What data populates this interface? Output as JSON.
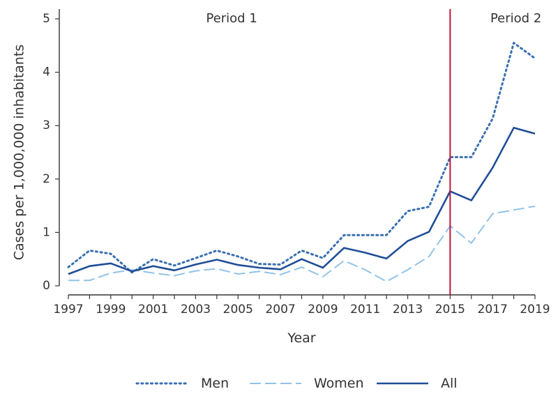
{
  "chart_data": {
    "type": "line",
    "xlabel": "Year",
    "ylabel": "Cases per 1,000,000 inhabitants",
    "xlim": [
      1997,
      2019
    ],
    "ylim": [
      0,
      5
    ],
    "x_ticks": [
      "1997",
      "1999",
      "2001",
      "2003",
      "2005",
      "2007",
      "2009",
      "2011",
      "2013",
      "2015",
      "2017",
      "2019"
    ],
    "y_ticks": [
      "0",
      "1",
      "2",
      "3",
      "4",
      "5"
    ],
    "x": [
      1997,
      1998,
      1999,
      2000,
      2001,
      2002,
      2003,
      2004,
      2005,
      2006,
      2007,
      2008,
      2009,
      2010,
      2011,
      2012,
      2013,
      2014,
      2015,
      2016,
      2017,
      2018,
      2019
    ],
    "series": [
      {
        "name": "Men",
        "style": "dotted",
        "color": "#3a6fb0",
        "values": [
          0.35,
          0.66,
          0.6,
          0.25,
          0.5,
          0.38,
          0.52,
          0.66,
          0.55,
          0.41,
          0.4,
          0.66,
          0.52,
          0.95,
          0.95,
          0.95,
          1.4,
          1.48,
          2.41,
          2.41,
          3.13,
          4.55,
          4.26
        ]
      },
      {
        "name": "Women",
        "style": "dashed",
        "color": "#8fc3ea",
        "values": [
          0.1,
          0.1,
          0.24,
          0.3,
          0.24,
          0.19,
          0.28,
          0.32,
          0.22,
          0.27,
          0.21,
          0.35,
          0.17,
          0.47,
          0.3,
          0.08,
          0.3,
          0.55,
          1.12,
          0.8,
          1.35,
          1.42,
          1.49
        ]
      },
      {
        "name": "All",
        "style": "solid",
        "color": "#1f4e96",
        "values": [
          0.22,
          0.37,
          0.42,
          0.27,
          0.37,
          0.29,
          0.4,
          0.49,
          0.39,
          0.34,
          0.31,
          0.5,
          0.34,
          0.71,
          0.62,
          0.51,
          0.84,
          1.01,
          1.77,
          1.6,
          2.21,
          2.96,
          2.85
        ]
      }
    ],
    "reference_line": {
      "x": 2015,
      "color": "#c0143c"
    },
    "annotations": [
      {
        "text": "Period 1",
        "x": 2004.7
      },
      {
        "text": "Period 2",
        "x": 2018.1
      }
    ],
    "legend": {
      "placement": "bottom"
    },
    "grid": false
  }
}
